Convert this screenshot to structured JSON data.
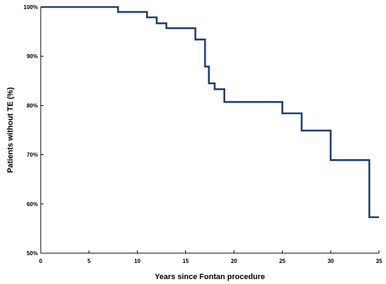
{
  "chart_data": {
    "type": "line",
    "step": true,
    "xlabel": "Years since Fontan procedure",
    "ylabel": "Patients without TE (%)",
    "xlim": [
      0,
      35
    ],
    "ylim": [
      50,
      100
    ],
    "x_ticks": [
      0,
      5,
      10,
      15,
      20,
      25,
      30,
      35
    ],
    "x_tick_labels": [
      "0",
      "5",
      "10",
      "15",
      "20",
      "25",
      "30",
      "35"
    ],
    "y_ticks": [
      50,
      60,
      70,
      80,
      90,
      100
    ],
    "y_tick_labels": [
      "50%",
      "60%",
      "70%",
      "80%",
      "90%",
      "100%"
    ],
    "grid": false,
    "series": [
      {
        "color": "#1f3f73",
        "x": [
          0,
          8,
          11,
          12,
          13,
          16,
          17,
          17.4,
          18,
          19,
          20,
          25,
          27,
          30,
          34,
          35
        ],
        "values": [
          100,
          99,
          97.9,
          96.7,
          95.7,
          93.4,
          87.9,
          84.5,
          83.3,
          80.7,
          80.7,
          78.4,
          74.9,
          68.9,
          57.3,
          57.3
        ]
      }
    ]
  }
}
